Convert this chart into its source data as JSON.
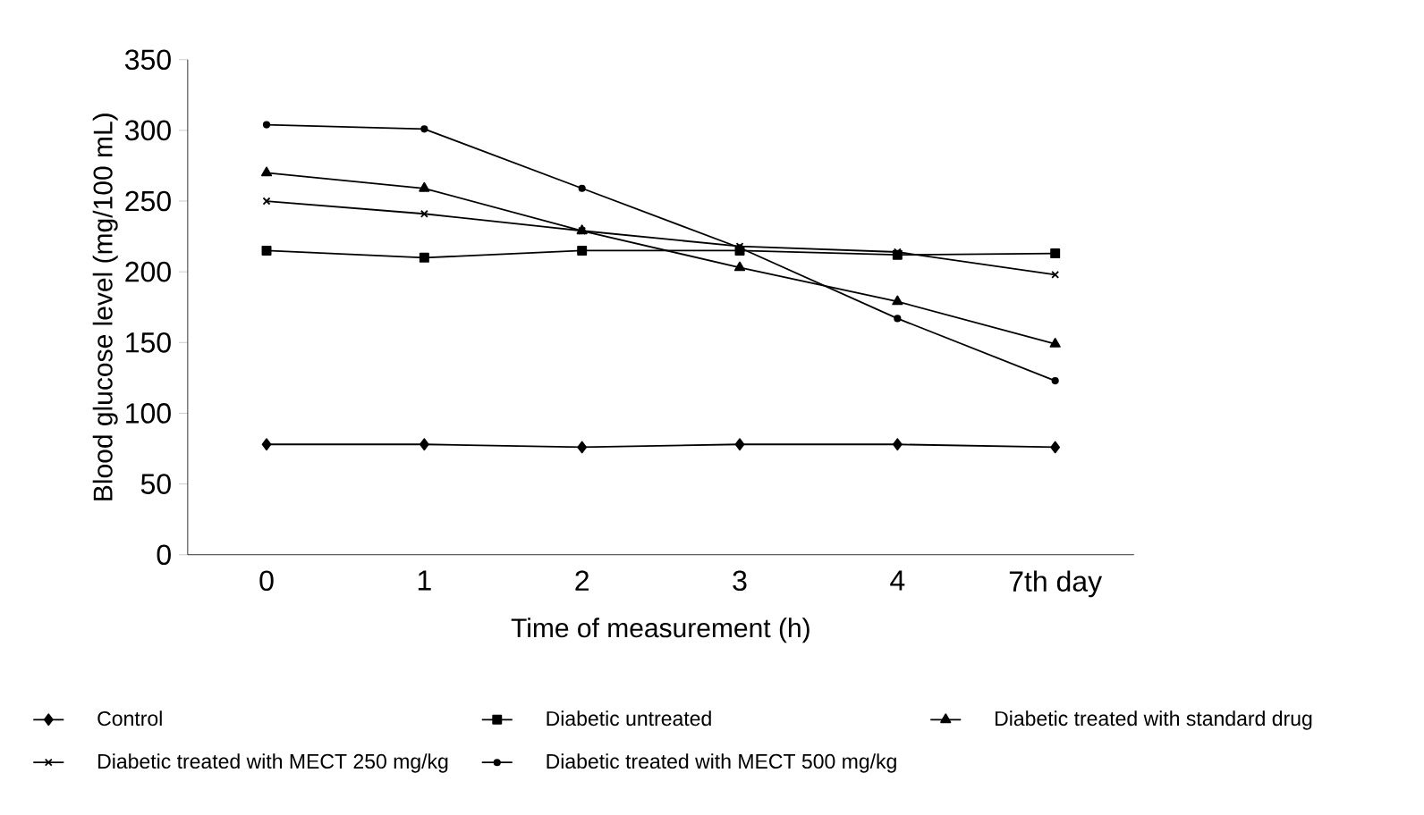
{
  "chart_data": {
    "type": "line",
    "xlabel": "Time of measurement (h)",
    "ylabel": "Blood glucose level (mg/100 mL)",
    "categories": [
      "0",
      "1",
      "2",
      "3",
      "4",
      "7th day"
    ],
    "ylim": [
      0,
      350
    ],
    "yticks": [
      0,
      50,
      100,
      150,
      200,
      250,
      300,
      350
    ],
    "grid": false,
    "legend": "bottom",
    "line_style": "solid",
    "series": [
      {
        "name": "Control",
        "color": "#000000",
        "marker": "diamond",
        "values": [
          78,
          78,
          76,
          78,
          78,
          76
        ]
      },
      {
        "name": "Diabetic untreated",
        "color": "#000000",
        "marker": "square",
        "values": [
          215,
          210,
          215,
          215,
          212,
          213
        ]
      },
      {
        "name": "Diabetic treated with standard drug",
        "color": "#000000",
        "marker": "triangle",
        "values": [
          270,
          259,
          229,
          203,
          179,
          149
        ]
      },
      {
        "name": "Diabetic treated with MECT 250 mg/kg",
        "color": "#000000",
        "marker": "cross",
        "values": [
          250,
          241,
          229,
          218,
          214,
          198
        ]
      },
      {
        "name": "Diabetic treated with MECT 500 mg/kg",
        "color": "#000000",
        "marker": "circle",
        "values": [
          304,
          301,
          259,
          217,
          167,
          123
        ]
      }
    ]
  }
}
